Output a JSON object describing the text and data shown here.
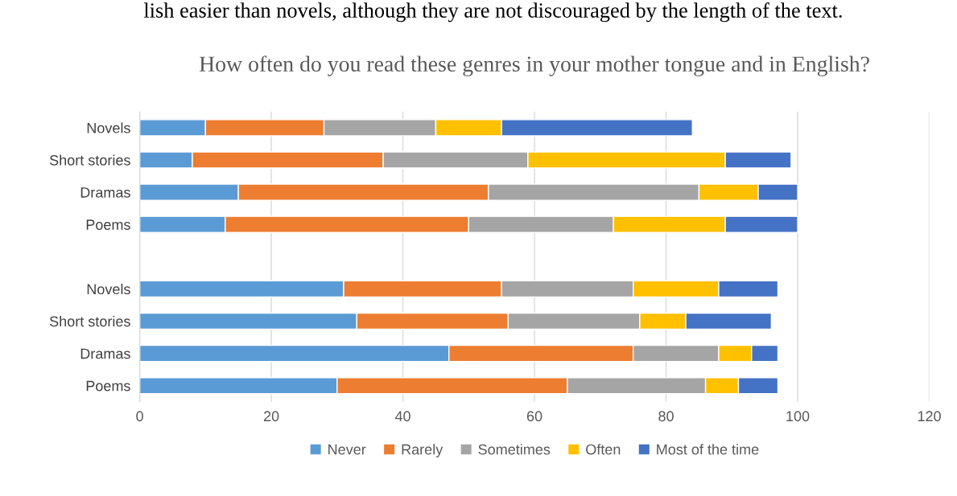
{
  "chart_data": {
    "type": "bar",
    "orientation": "horizontal",
    "stacked": true,
    "title": "How often do you read these genres in your mother tongue and in English?",
    "annotations": [
      "lish easier than novels, although they are not discouraged by the length of the text."
    ],
    "categories": [
      "Novels",
      "Short stories",
      "Dramas",
      "Poems",
      null,
      "Novels",
      "Short stories",
      "Dramas",
      "Poems"
    ],
    "series": [
      {
        "name": "Never",
        "color": "#5b9bd5",
        "values": [
          10,
          8,
          15,
          13,
          null,
          31,
          33,
          47,
          30
        ]
      },
      {
        "name": "Rarely",
        "color": "#ed7d31",
        "values": [
          18,
          29,
          38,
          37,
          null,
          24,
          23,
          28,
          35
        ]
      },
      {
        "name": "Sometimes",
        "color": "#a5a5a5",
        "values": [
          17,
          22,
          32,
          22,
          null,
          20,
          20,
          13,
          21
        ]
      },
      {
        "name": "Often",
        "color": "#ffc000",
        "values": [
          10,
          30,
          9,
          17,
          null,
          13,
          7,
          5,
          5
        ]
      },
      {
        "name": "Most of the time",
        "color": "#4472c4",
        "values": [
          29,
          10,
          6,
          11,
          null,
          9,
          13,
          4,
          6
        ]
      }
    ],
    "xlim": [
      0,
      120
    ],
    "xticks": [
      0,
      20,
      40,
      60,
      80,
      100,
      120
    ],
    "grid": "x",
    "legend": "bottom"
  }
}
